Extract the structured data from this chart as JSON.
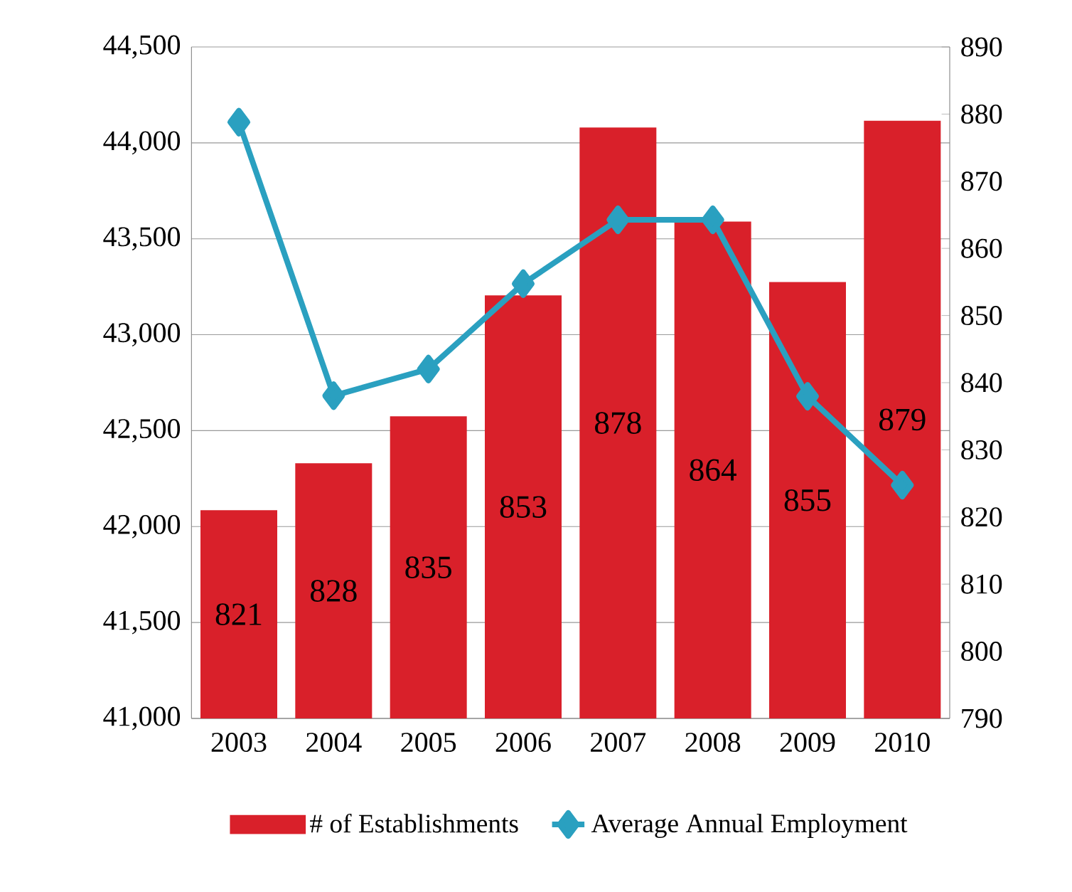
{
  "chart_data": {
    "type": "bar",
    "categories": [
      "2003",
      "2004",
      "2005",
      "2006",
      "2007",
      "2008",
      "2009",
      "2010"
    ],
    "series": [
      {
        "name": "# of Establishments",
        "axis": "y2",
        "color": "#d9202a",
        "values": [
          821,
          828,
          835,
          853,
          878,
          864,
          855,
          879
        ],
        "value_labels": [
          "821",
          "828",
          "835",
          "853",
          "878",
          "864",
          "855",
          "879"
        ]
      },
      {
        "name": "Average Annual Employment",
        "type": "line",
        "color": "#2aa0c0",
        "marker": "diamond",
        "values": [
          44108,
          42682,
          42821,
          43266,
          43599,
          43599,
          42679,
          42216
        ]
      }
    ],
    "ylim": [
      41000,
      44500
    ],
    "yticks": [
      {
        "value": 41000,
        "label": "41,000"
      },
      {
        "value": 41500,
        "label": "41,500"
      },
      {
        "value": 42000,
        "label": "42,000"
      },
      {
        "value": 42500,
        "label": "42,500"
      },
      {
        "value": 43000,
        "label": "43,000"
      },
      {
        "value": 43500,
        "label": "43,500"
      },
      {
        "value": 44000,
        "label": "44,000"
      },
      {
        "value": 44500,
        "label": "44,500"
      }
    ],
    "y2lim": [
      790,
      890
    ],
    "y2ticks": [
      790,
      800,
      810,
      820,
      830,
      840,
      850,
      860,
      870,
      880,
      890
    ],
    "grid": "y",
    "legend": "bottom"
  }
}
